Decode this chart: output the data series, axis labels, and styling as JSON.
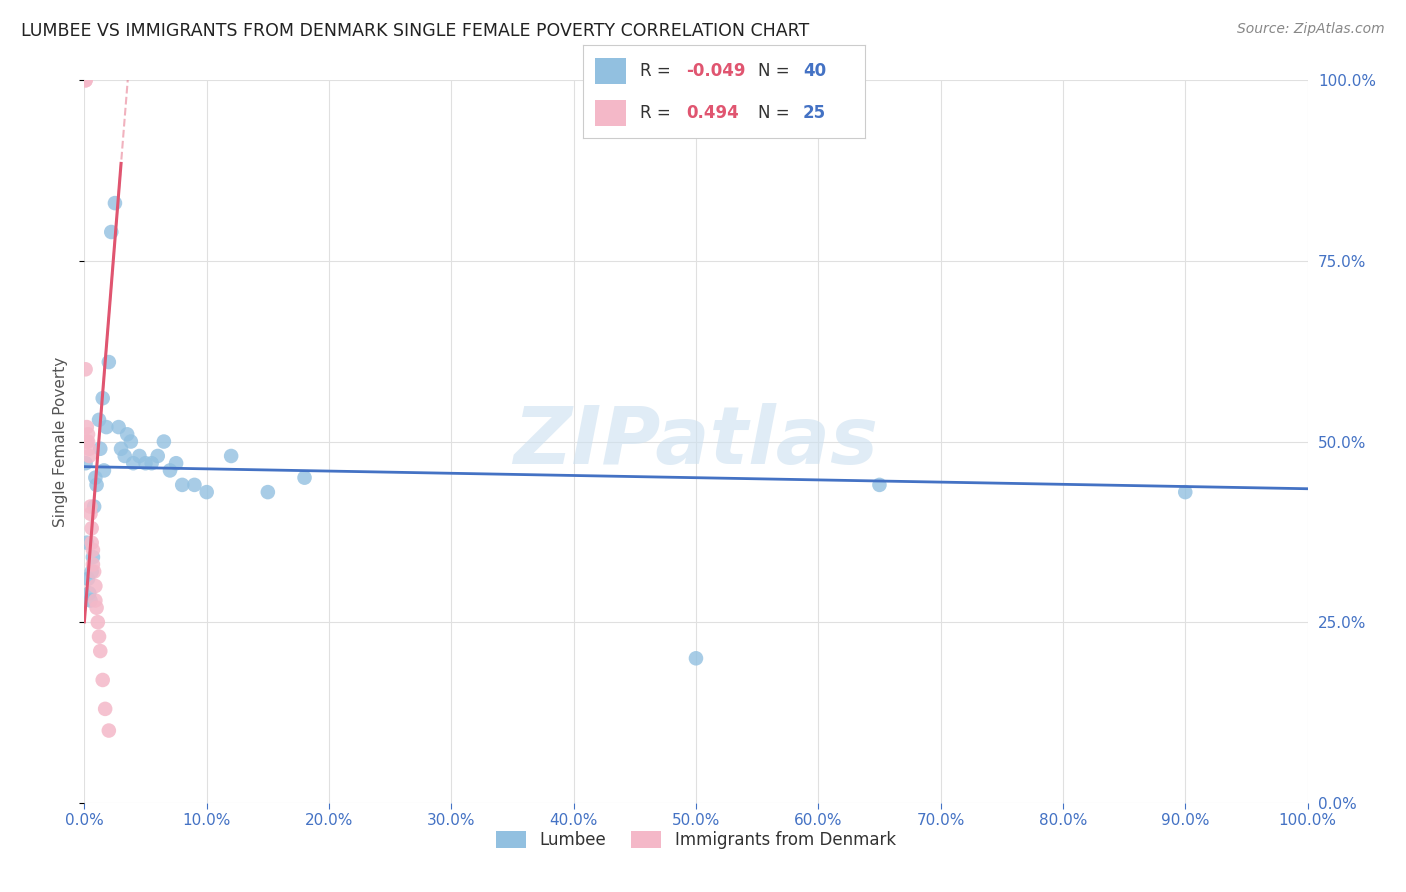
{
  "title": "LUMBEE VS IMMIGRANTS FROM DENMARK SINGLE FEMALE POVERTY CORRELATION CHART",
  "source": "Source: ZipAtlas.com",
  "ylabel": "Single Female Poverty",
  "R_lumbee": -0.049,
  "N_lumbee": 40,
  "R_denmark": 0.494,
  "N_denmark": 25,
  "lumbee_x": [
    0.001,
    0.002,
    0.003,
    0.004,
    0.005,
    0.006,
    0.007,
    0.008,
    0.009,
    0.01,
    0.012,
    0.013,
    0.015,
    0.016,
    0.018,
    0.02,
    0.022,
    0.025,
    0.028,
    0.03,
    0.033,
    0.035,
    0.038,
    0.04,
    0.045,
    0.05,
    0.055,
    0.06,
    0.065,
    0.07,
    0.075,
    0.08,
    0.09,
    0.1,
    0.12,
    0.15,
    0.18,
    0.5,
    0.65,
    0.9
  ],
  "lumbee_y": [
    0.47,
    0.36,
    0.31,
    0.29,
    0.28,
    0.32,
    0.34,
    0.41,
    0.45,
    0.44,
    0.53,
    0.49,
    0.56,
    0.46,
    0.52,
    0.61,
    0.79,
    0.83,
    0.52,
    0.49,
    0.48,
    0.51,
    0.5,
    0.47,
    0.48,
    0.47,
    0.47,
    0.48,
    0.5,
    0.46,
    0.47,
    0.44,
    0.44,
    0.43,
    0.48,
    0.43,
    0.45,
    0.2,
    0.44,
    0.43
  ],
  "denmark_x": [
    0.001,
    0.001,
    0.001,
    0.002,
    0.002,
    0.003,
    0.003,
    0.004,
    0.004,
    0.005,
    0.005,
    0.006,
    0.006,
    0.007,
    0.007,
    0.008,
    0.009,
    0.009,
    0.01,
    0.011,
    0.012,
    0.013,
    0.015,
    0.017,
    0.02
  ],
  "denmark_y": [
    1.0,
    1.0,
    0.6,
    0.52,
    0.5,
    0.51,
    0.5,
    0.49,
    0.48,
    0.41,
    0.4,
    0.38,
    0.36,
    0.35,
    0.33,
    0.32,
    0.3,
    0.28,
    0.27,
    0.25,
    0.23,
    0.21,
    0.17,
    0.13,
    0.1
  ],
  "xlim": [
    0.0,
    1.0
  ],
  "ylim": [
    0.0,
    1.0
  ],
  "background_color": "#ffffff",
  "lumbee_color": "#92c0e0",
  "denmark_color": "#f4b8c8",
  "lumbee_line_color": "#4472c4",
  "denmark_line_color": "#e05570",
  "title_color": "#222222",
  "axis_label_color": "#555555",
  "right_tick_color": "#4472c4",
  "bottom_tick_color": "#4472c4",
  "grid_color": "#e0e0e0",
  "legend_R_color": "#e05570",
  "legend_N_color": "#4472c4",
  "source_color": "#888888",
  "watermark_color": "#cce0f0",
  "xticks": [
    0.0,
    0.1,
    0.2,
    0.3,
    0.4,
    0.5,
    0.6,
    0.7,
    0.8,
    0.9,
    1.0
  ],
  "yticks": [
    0.0,
    0.25,
    0.5,
    0.75,
    1.0
  ]
}
